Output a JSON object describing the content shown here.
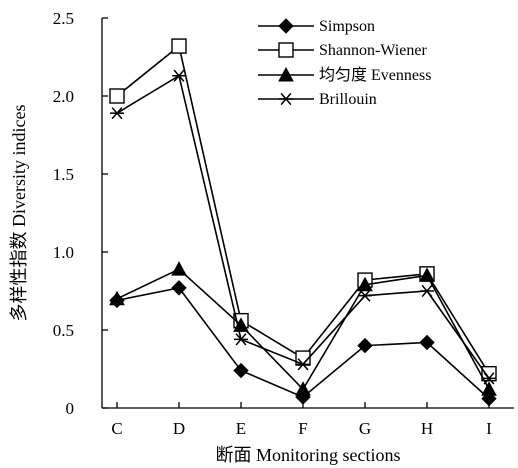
{
  "chart_data": {
    "type": "line",
    "title": "",
    "xlabel": "断面 Monitoring sections",
    "ylabel": "多样性指数 Diversity indices",
    "categories": [
      "C",
      "D",
      "E",
      "F",
      "G",
      "H",
      "I"
    ],
    "ylim": [
      0,
      2.5
    ],
    "yticks": [
      "0",
      "0.5",
      "1.0",
      "1.5",
      "2.0",
      "2.5"
    ],
    "grid": false,
    "legend_position": "top-right",
    "series": [
      {
        "name": "Simpson",
        "marker": "diamond-filled",
        "values": [
          0.69,
          0.77,
          0.24,
          0.07,
          0.4,
          0.42,
          0.06
        ]
      },
      {
        "name": "Shannon-Wiener",
        "marker": "square-open",
        "values": [
          2.0,
          2.32,
          0.56,
          0.32,
          0.82,
          0.86,
          0.22
        ]
      },
      {
        "name": "均匀度 Evenness",
        "marker": "triangle-filled",
        "values": [
          0.7,
          0.89,
          0.53,
          0.12,
          0.79,
          0.85,
          0.12
        ]
      },
      {
        "name": "Brillouin",
        "marker": "asterisk",
        "values": [
          1.89,
          2.13,
          0.44,
          0.28,
          0.72,
          0.75,
          0.19
        ]
      }
    ]
  }
}
